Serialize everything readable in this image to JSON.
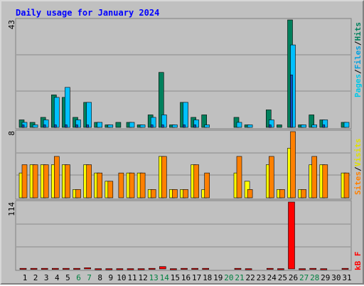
{
  "chart_data": {
    "type": "bar",
    "title": "Daily usage for January 2024",
    "days": [
      "1",
      "2",
      "3",
      "4",
      "5",
      "6",
      "7",
      "8",
      "9",
      "10",
      "11",
      "12",
      "13",
      "14",
      "15",
      "16",
      "17",
      "18",
      "19",
      "20",
      "21",
      "22",
      "23",
      "24",
      "25",
      "26",
      "27",
      "28",
      "29",
      "30",
      "31"
    ],
    "weekend_days": [
      "6",
      "7",
      "13",
      "14",
      "20",
      "21",
      "27",
      "28"
    ],
    "panels": [
      {
        "name": "hits-files-pages",
        "max_label": "43",
        "ymax": 43,
        "axis_labels": [
          "Pages",
          "Files",
          "Hits"
        ],
        "series": [
          {
            "name": "Hits",
            "color": "#00805c",
            "values": [
              3,
              2,
              4,
              13,
              12,
              4,
              10,
              2,
              1,
              2,
              2,
              1,
              5,
              22,
              1,
              10,
              4,
              5,
              0,
              0,
              4,
              1,
              0,
              7,
              1,
              43,
              1,
              5,
              3,
              0,
              2
            ]
          },
          {
            "name": "Files",
            "color": "#00c0ff",
            "values": [
              2,
              1,
              3,
              12,
              16,
              3,
              10,
              2,
              1,
              0,
              2,
              1,
              4,
              5,
              1,
              10,
              3,
              1,
              0,
              0,
              2,
              1,
              0,
              3,
              0,
              33,
              1,
              1,
              3,
              0,
              2
            ]
          },
          {
            "name": "Pages",
            "color": "#00c8e8",
            "values": [
              1,
              0,
              1,
              1,
              1,
              1,
              1,
              0,
              0,
              0,
              0,
              0,
              1,
              1,
              0,
              1,
              1,
              0,
              0,
              0,
              0,
              0,
              0,
              1,
              0,
              21,
              0,
              0,
              1,
              0,
              0
            ]
          }
        ]
      },
      {
        "name": "visits-sites",
        "max_label": "8",
        "ymax": 8,
        "axis_labels": [
          "Sites",
          "Visits"
        ],
        "series": [
          {
            "name": "Visits",
            "color": "#ffff00",
            "values": [
              3,
              4,
              4,
              4,
              4,
              1,
              4,
              3,
              2,
              0,
              3,
              3,
              1,
              5,
              1,
              1,
              4,
              1,
              0,
              0,
              3,
              2,
              0,
              4,
              1,
              6,
              1,
              4,
              4,
              0,
              3
            ]
          },
          {
            "name": "Sites",
            "color": "#ff8000",
            "values": [
              4,
              4,
              4,
              5,
              4,
              1,
              4,
              3,
              2,
              3,
              3,
              3,
              1,
              5,
              1,
              1,
              4,
              3,
              0,
              0,
              5,
              1,
              0,
              5,
              1,
              8,
              1,
              5,
              4,
              0,
              3
            ]
          }
        ]
      },
      {
        "name": "kbytes",
        "max_label": "114",
        "ymax": 114,
        "axis_labels": [
          "kB F"
        ],
        "series": [
          {
            "name": "kB F",
            "color": "#ff0000",
            "values": [
              1,
              1,
              1,
              1,
              1,
              1,
              2,
              0.5,
              0.5,
              0.5,
              0.5,
              0.5,
              1,
              4,
              0.5,
              1,
              1,
              1,
              0,
              0,
              1,
              0.5,
              0,
              1,
              0.5,
              114,
              0.5,
              1,
              0.5,
              0,
              1
            ]
          }
        ]
      }
    ],
    "grid": true
  },
  "colors": {
    "background": "#c0c0c0",
    "panel": "#c0c0c0",
    "title": "#0000ff",
    "day_normal": "#000000",
    "day_weekend": "#008040",
    "hits": "#00805c",
    "files": "#00c0ff",
    "pages": "#00c8e8",
    "visits": "#ffff00",
    "sites": "#ff8000",
    "kbytes": "#ff0000"
  }
}
